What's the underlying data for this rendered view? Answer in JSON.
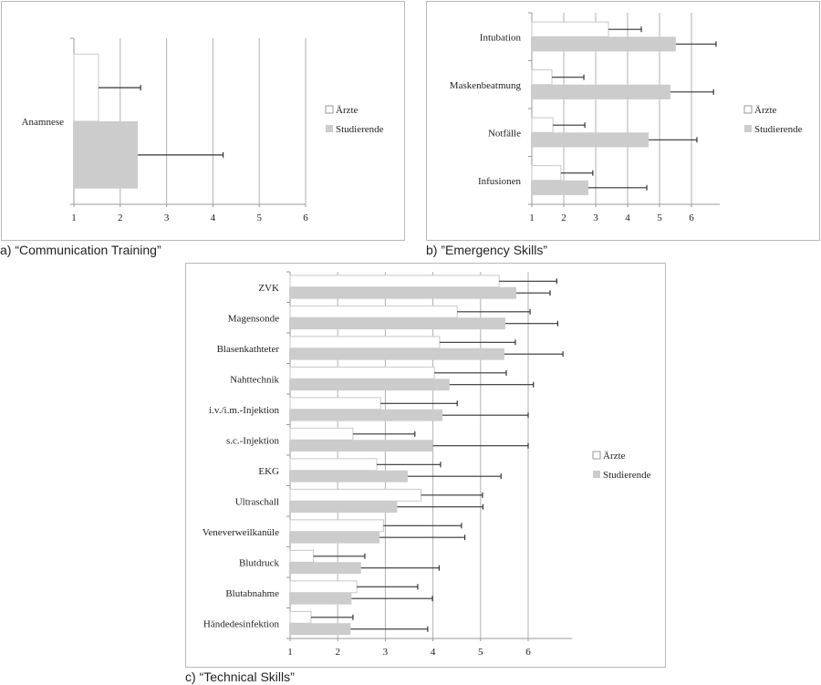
{
  "colors": {
    "aerzte_fill": "#ffffff",
    "aerzte_stroke": "#c8c8c8",
    "studierende_fill": "#cccccc",
    "gridline": "#b0b0b0",
    "axis": "#9a9a9a",
    "error_bar": "#333333"
  },
  "captions": {
    "a": "a) “Communication Training”",
    "b": "b) ”Emergency Skills”",
    "c": "c) “Technical Skills”"
  },
  "chart_data": [
    {
      "id": "a",
      "type": "bar",
      "orientation": "horizontal",
      "title": "a) “Communication Training”",
      "xlabel": "",
      "ylabel": "",
      "xlim": [
        1,
        6
      ],
      "xticks": [
        "1",
        "2",
        "3",
        "4",
        "5",
        "6"
      ],
      "grid": true,
      "legend": {
        "position": "right",
        "entries": [
          "Ärzte",
          "Studierende"
        ]
      },
      "categories": [
        "Anamnese"
      ],
      "series": [
        {
          "name": "Ärzte",
          "values": [
            1.53
          ],
          "error_upper": [
            2.44
          ]
        },
        {
          "name": "Studierende",
          "values": [
            2.38
          ],
          "error_upper": [
            4.22
          ]
        }
      ]
    },
    {
      "id": "b",
      "type": "bar",
      "orientation": "horizontal",
      "title": "b) ”Emergency Skills”",
      "xlabel": "",
      "ylabel": "",
      "xlim": [
        1,
        6.9
      ],
      "xticks": [
        "1",
        "2",
        "3",
        "4",
        "5",
        "6"
      ],
      "grid": true,
      "legend": {
        "position": "right",
        "entries": [
          "Ärzte",
          "Studierende"
        ]
      },
      "categories": [
        "Intubation",
        "Maskenbeatmung",
        "Notfälle",
        "Infusionen"
      ],
      "series": [
        {
          "name": "Ärzte",
          "values": [
            3.4,
            1.63,
            1.66,
            1.91
          ],
          "error_upper": [
            4.43,
            2.63,
            2.66,
            2.91
          ]
        },
        {
          "name": "Studierende",
          "values": [
            5.51,
            5.34,
            4.66,
            2.77
          ],
          "error_upper": [
            6.77,
            6.69,
            6.17,
            4.6
          ]
        }
      ]
    },
    {
      "id": "c",
      "type": "bar",
      "orientation": "horizontal",
      "title": "c) “Technical Skills”",
      "xlabel": "",
      "ylabel": "",
      "xlim": [
        1,
        6.9
      ],
      "xticks": [
        "1",
        "2",
        "3",
        "4",
        "5",
        "6"
      ],
      "grid": true,
      "legend": {
        "position": "right",
        "entries": [
          "Ärzte",
          "Studierende"
        ]
      },
      "categories": [
        "ZVK",
        "Magensonde",
        "Blasenkathteter",
        "Nahttechnik",
        "i.v./i.m.-Injektion",
        "s.c.-Injektion",
        "EKG",
        "Ultraschall",
        "Veneverweilkanüle",
        "Blutdruck",
        "Blutabnahme",
        "Händedesinfektion"
      ],
      "series": [
        {
          "name": "Ärzte",
          "values": [
            5.39,
            4.51,
            4.14,
            4.03,
            2.9,
            2.32,
            2.82,
            3.75,
            2.96,
            1.49,
            2.4,
            1.44
          ],
          "error_upper": [
            6.6,
            6.04,
            5.73,
            5.54,
            4.51,
            3.62,
            4.16,
            5.04,
            4.6,
            2.57,
            3.68,
            2.32
          ]
        },
        {
          "name": "Studierende",
          "values": [
            5.75,
            5.52,
            5.5,
            4.35,
            4.2,
            4.0,
            3.47,
            3.25,
            2.88,
            2.49,
            2.29,
            2.27
          ],
          "error_upper": [
            6.46,
            6.62,
            6.73,
            6.11,
            6.0,
            6.0,
            5.43,
            5.05,
            4.67,
            4.13,
            3.99,
            3.89
          ]
        }
      ]
    }
  ]
}
